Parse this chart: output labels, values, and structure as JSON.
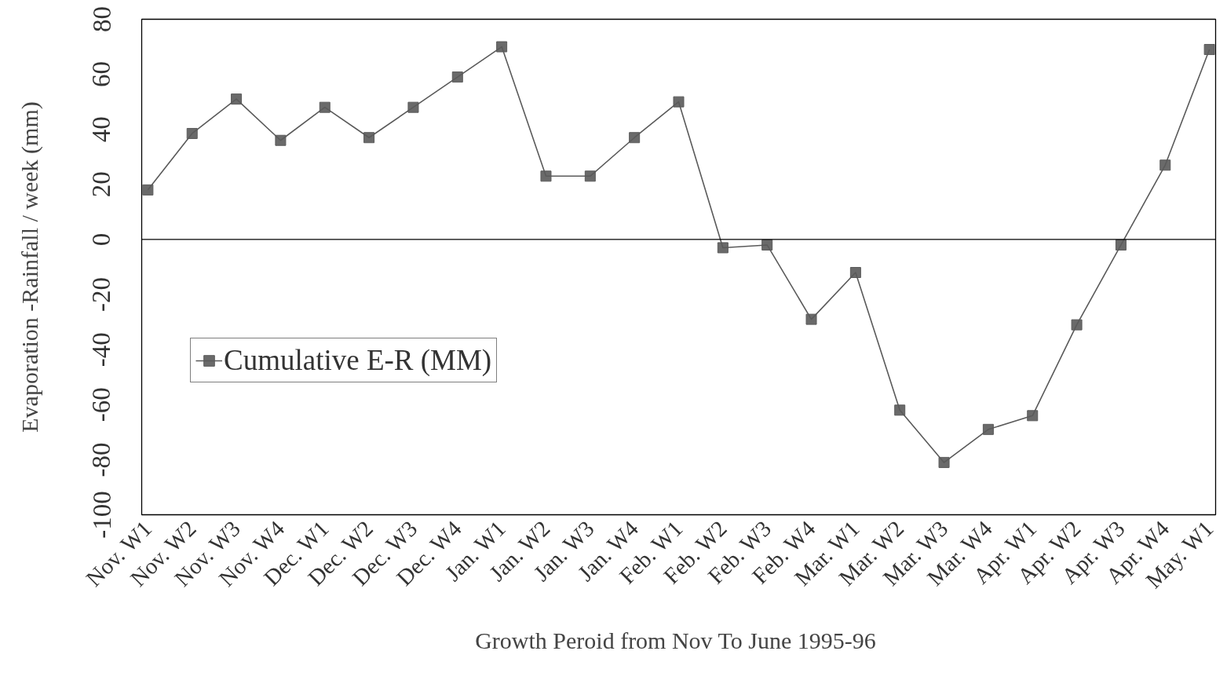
{
  "chart_data": {
    "type": "line",
    "xlabel": "Growth Peroid from  Nov To June 1995-96",
    "ylabel": "Evaporation -Rainfall / week (mm)",
    "categories": [
      "Nov. W1",
      "Nov. W2",
      "Nov. W3",
      "Nov. W4",
      "Dec. W1",
      "Dec. W2",
      "Dec. W3",
      "Dec. W4",
      "Jan. W1",
      "Jan. W2",
      "Jan. W3",
      "Jan. W4",
      "Feb. W1",
      "Feb. W2",
      "Feb. W3",
      "Feb. W4",
      "Mar. W1",
      "Mar. W2",
      "Mar. W3",
      "Mar. W4",
      "Apr. W1",
      "Apr. W2",
      "Apr. W3",
      "Apr. W4",
      "May. W1"
    ],
    "series": [
      {
        "name": "Cumulative E-R (MM)",
        "color": "#5a5a5a",
        "values": [
          18,
          38.5,
          51,
          36,
          48,
          37,
          48,
          59,
          70,
          23,
          23,
          37,
          50,
          -3,
          -2,
          -29,
          -12,
          -62,
          -81,
          -69,
          -64,
          -31,
          -2,
          27,
          69
        ]
      }
    ],
    "ylim": [
      -100,
      80
    ],
    "yticks": [
      -100,
      -80,
      -60,
      -40,
      -20,
      0,
      20,
      40,
      60,
      80
    ],
    "grid": false,
    "legend": "left",
    "marker": "square",
    "line_style": "solid",
    "ref_lines": [
      {
        "axis": "y",
        "value": 0,
        "color": "#000000"
      }
    ]
  }
}
